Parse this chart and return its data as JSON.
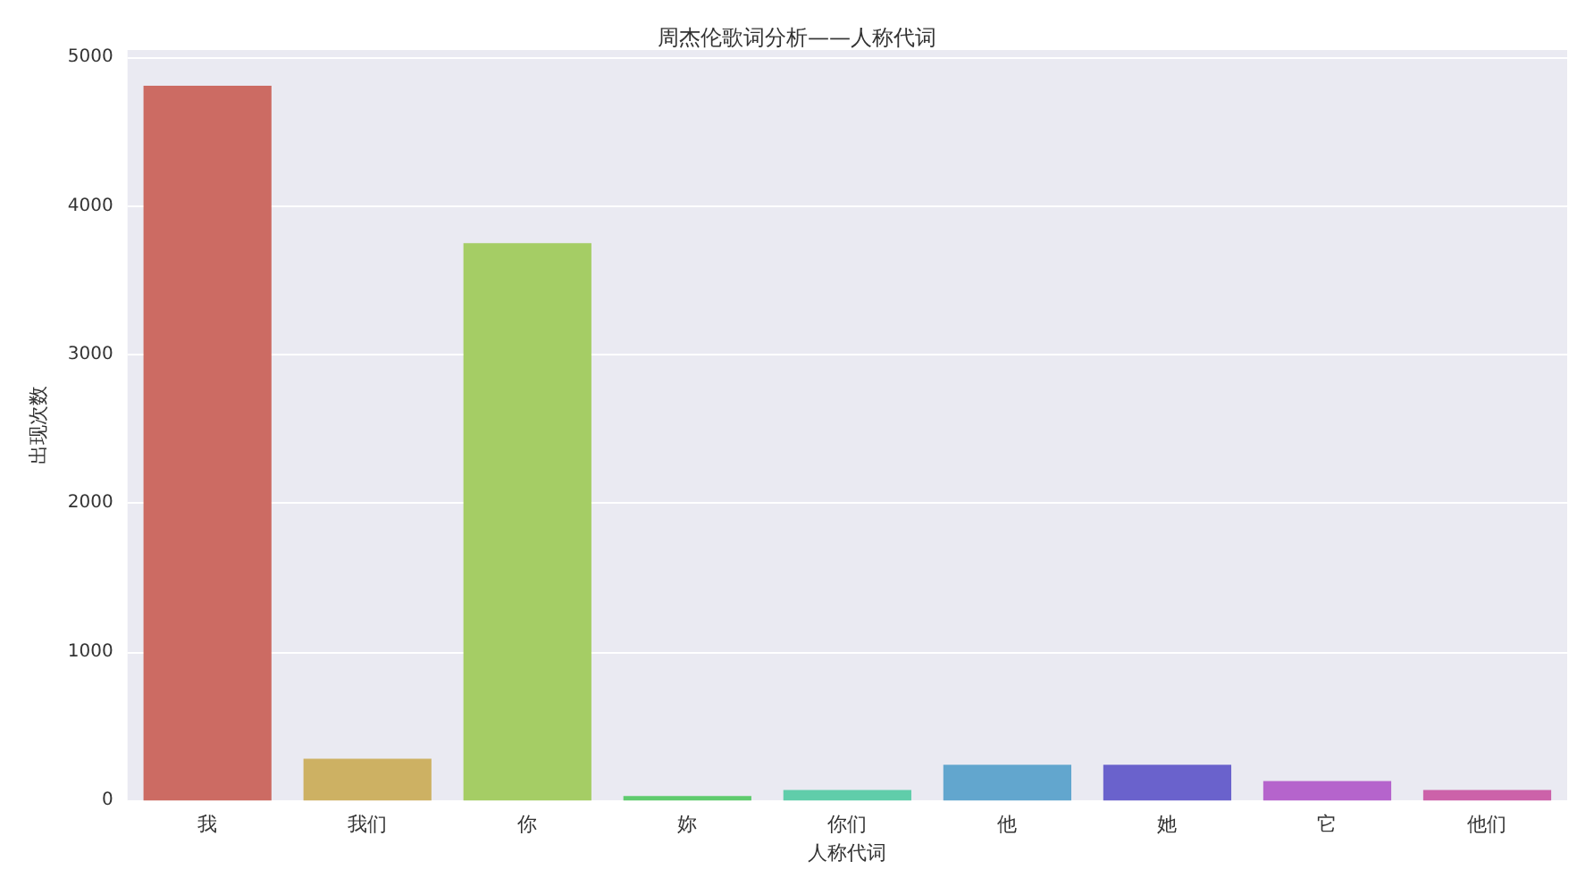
{
  "chart_data": {
    "type": "bar",
    "title": "周杰伦歌词分析——人称代词",
    "xlabel": "人称代词",
    "ylabel": "出现次数",
    "categories": [
      "我",
      "我们",
      "你",
      "妳",
      "你们",
      "他",
      "她",
      "它",
      "他们"
    ],
    "values": [
      4810,
      280,
      3750,
      30,
      70,
      240,
      240,
      130,
      70
    ],
    "colors": [
      "#cc6b63",
      "#cdb163",
      "#a5cd65",
      "#5fcb6e",
      "#60cdaa",
      "#62a6ce",
      "#6a62cc",
      "#b564cc",
      "#cc62a9"
    ],
    "ylim": [
      0,
      5050
    ],
    "yticks": [
      0,
      1000,
      2000,
      3000,
      4000,
      5000
    ],
    "grid": "y"
  }
}
